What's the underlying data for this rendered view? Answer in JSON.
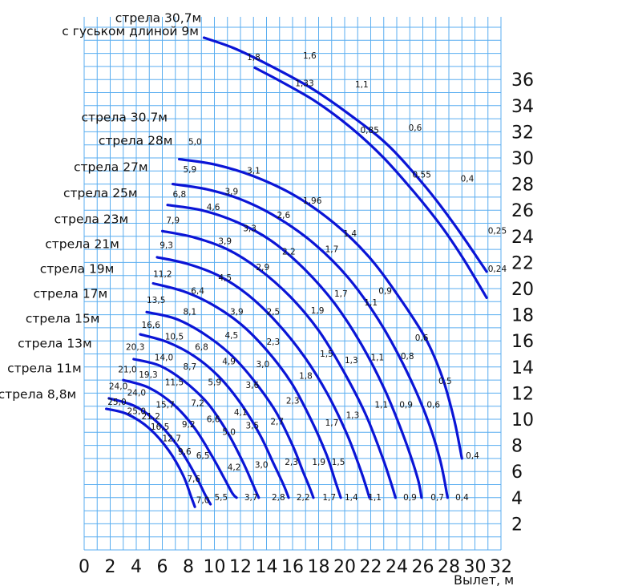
{
  "chart_data": {
    "type": "line",
    "title": "",
    "xlabel": "Вылет, м",
    "ylabel": "",
    "xlim": [
      0,
      32
    ],
    "ylim": [
      0,
      40
    ],
    "grid": true,
    "x_ticks": [
      "0",
      "2",
      "4",
      "6",
      "8",
      "10",
      "12",
      "14",
      "16",
      "18",
      "20",
      "22",
      "24",
      "26",
      "28",
      "30",
      "32"
    ],
    "y_ticks": [
      "2",
      "4",
      "6",
      "8",
      "10",
      "12",
      "14",
      "16",
      "18",
      "20",
      "22",
      "24",
      "26",
      "28",
      "30",
      "32",
      "34",
      "36"
    ],
    "boom_labels": [
      {
        "text": "стрела 30,7м",
        "lx": 9.0,
        "ly": 40.4
      },
      {
        "text": "с гуськом длиной 9м",
        "lx": 8.8,
        "ly": 39.4
      },
      {
        "text": "стрела 30.7м",
        "lx": 6.4,
        "ly": 32.8
      },
      {
        "text": "стрела 28м",
        "lx": 6.8,
        "ly": 31.0
      },
      {
        "text": "стрела 27м",
        "lx": 4.9,
        "ly": 29.0
      },
      {
        "text": "стрела 25м",
        "lx": 4.1,
        "ly": 27.0
      },
      {
        "text": "стрела 23м",
        "lx": 3.4,
        "ly": 25.0
      },
      {
        "text": "стрела 21м",
        "lx": 2.7,
        "ly": 23.1
      },
      {
        "text": "стрела 19м",
        "lx": 2.3,
        "ly": 21.2
      },
      {
        "text": "стрела 17м",
        "lx": 1.8,
        "ly": 19.3
      },
      {
        "text": "стрела 15м",
        "lx": 1.2,
        "ly": 17.4
      },
      {
        "text": "стрела 13м",
        "lx": 0.6,
        "ly": 15.5
      },
      {
        "text": "стрела 11м",
        "lx": -0.2,
        "ly": 13.6
      },
      {
        "text": "стрела 8,8м",
        "lx": -0.6,
        "ly": 11.6
      }
    ],
    "series": [
      {
        "id": "jib-upper",
        "x": [
          9.2,
          11.5,
          14.2,
          17.5,
          20.4,
          23.3,
          26.2,
          28.5,
          30.9
        ],
        "y": [
          39.2,
          38.4,
          37.1,
          35.3,
          33.3,
          31.0,
          27.8,
          24.8,
          21.3
        ]
      },
      {
        "id": "jib-lower",
        "x": [
          13.1,
          15.2,
          17.8,
          20.5,
          23.0,
          25.4,
          27.4,
          29.1,
          30.9
        ],
        "y": [
          36.9,
          35.8,
          34.3,
          32.3,
          30.0,
          27.3,
          24.8,
          22.3,
          19.3
        ]
      },
      {
        "id": "b307",
        "x": [
          7.3,
          10.0,
          13.0,
          16.2,
          19.2,
          21.8,
          24.0,
          26.2,
          27.5,
          28.4,
          29.0
        ],
        "y": [
          29.9,
          29.5,
          28.6,
          27.1,
          25.0,
          22.5,
          19.6,
          16.2,
          13.2,
          10.0,
          7.0
        ]
      },
      {
        "id": "b28",
        "x": [
          6.8,
          9.4,
          12.1,
          14.9,
          17.7,
          20.3,
          22.6,
          24.5,
          26.2,
          27.3,
          27.9
        ],
        "y": [
          28.0,
          27.6,
          26.8,
          25.4,
          23.4,
          20.8,
          17.6,
          14.2,
          10.4,
          7.0,
          4.0
        ]
      },
      {
        "id": "b27",
        "x": [
          6.4,
          9.0,
          11.7,
          14.3,
          16.8,
          19.2,
          21.3,
          23.1,
          24.6,
          25.6,
          25.9
        ],
        "y": [
          26.4,
          26.0,
          25.1,
          23.7,
          21.6,
          18.9,
          15.7,
          12.2,
          8.5,
          5.5,
          4.0
        ]
      },
      {
        "id": "b25",
        "x": [
          6.0,
          8.5,
          11.0,
          13.4,
          15.8,
          18.0,
          19.9,
          21.6,
          22.9,
          23.6,
          23.9
        ],
        "y": [
          24.4,
          23.9,
          23.0,
          21.5,
          19.4,
          16.8,
          13.7,
          10.4,
          7.1,
          5.0,
          4.0
        ]
      },
      {
        "id": "b23",
        "x": [
          5.6,
          7.9,
          10.3,
          12.6,
          14.8,
          16.9,
          18.7,
          20.2,
          21.3,
          21.9
        ],
        "y": [
          22.4,
          21.9,
          21.0,
          19.5,
          17.4,
          14.8,
          11.9,
          8.8,
          5.9,
          4.0
        ]
      },
      {
        "id": "b21",
        "x": [
          5.3,
          7.6,
          9.8,
          12.0,
          14.0,
          15.9,
          17.4,
          18.6,
          19.3,
          19.7
        ],
        "y": [
          20.4,
          19.8,
          18.8,
          17.3,
          15.3,
          12.8,
          10.0,
          7.3,
          5.2,
          4.0
        ]
      },
      {
        "id": "b19",
        "x": [
          4.8,
          7.0,
          9.1,
          11.2,
          13.0,
          14.7,
          16.0,
          16.8,
          17.3,
          17.6
        ],
        "y": [
          18.2,
          17.7,
          16.6,
          15.0,
          13.0,
          10.6,
          8.0,
          6.0,
          4.8,
          4.0
        ]
      },
      {
        "id": "b17",
        "x": [
          4.3,
          6.4,
          8.5,
          10.4,
          12.1,
          13.5,
          14.5,
          15.3,
          15.7
        ],
        "y": [
          16.5,
          15.9,
          14.8,
          13.2,
          11.1,
          8.8,
          6.7,
          5.0,
          4.0
        ]
      },
      {
        "id": "b15",
        "x": [
          3.8,
          5.8,
          7.7,
          9.5,
          11.0,
          12.2,
          13.0,
          13.4
        ],
        "y": [
          14.6,
          14.1,
          12.9,
          11.2,
          9.0,
          6.7,
          4.9,
          4.0
        ]
      },
      {
        "id": "b13",
        "x": [
          3.0,
          5.0,
          6.9,
          8.5,
          9.8,
          10.8,
          11.4,
          11.7
        ],
        "y": [
          13.0,
          12.4,
          11.1,
          9.3,
          7.2,
          5.4,
          4.3,
          4.0
        ]
      },
      {
        "id": "b11",
        "x": [
          1.9,
          3.9,
          5.7,
          7.3,
          8.5,
          9.3,
          9.7
        ],
        "y": [
          11.6,
          11.0,
          9.7,
          7.8,
          5.8,
          4.2,
          3.5
        ]
      },
      {
        "id": "b88",
        "x": [
          1.7,
          3.3,
          5.0,
          6.5,
          7.6,
          8.2,
          8.5
        ],
        "y": [
          10.8,
          10.4,
          9.3,
          7.6,
          5.7,
          4.1,
          3.3
        ]
      }
    ],
    "load_labels": [
      {
        "text": "1,6",
        "x": 16.8,
        "y": 37.6
      },
      {
        "text": "1,8",
        "x": 12.5,
        "y": 37.5
      },
      {
        "text": "1,33",
        "x": 16.2,
        "y": 35.5
      },
      {
        "text": "1,1",
        "x": 20.8,
        "y": 35.4
      },
      {
        "text": "0,6",
        "x": 24.9,
        "y": 32.1
      },
      {
        "text": "0,85",
        "x": 21.2,
        "y": 31.9
      },
      {
        "text": "0,55",
        "x": 25.2,
        "y": 28.5
      },
      {
        "text": "0,4",
        "x": 28.9,
        "y": 28.2
      },
      {
        "text": "0,25",
        "x": 31.0,
        "y": 24.2
      },
      {
        "text": "0,24",
        "x": 31.0,
        "y": 21.3
      },
      {
        "text": "5,0",
        "x": 8.0,
        "y": 31.0
      },
      {
        "text": "3,1",
        "x": 12.5,
        "y": 28.8
      },
      {
        "text": "1,96",
        "x": 16.8,
        "y": 26.5
      },
      {
        "text": "1,4",
        "x": 19.9,
        "y": 24.0
      },
      {
        "text": "0,9",
        "x": 22.6,
        "y": 19.6
      },
      {
        "text": "0,6",
        "x": 25.4,
        "y": 16.0
      },
      {
        "text": "0,5",
        "x": 27.2,
        "y": 12.7
      },
      {
        "text": "0,4",
        "x": 29.3,
        "y": 7.0
      },
      {
        "text": "5,9",
        "x": 7.6,
        "y": 28.9
      },
      {
        "text": "3,9",
        "x": 10.8,
        "y": 27.2
      },
      {
        "text": "2,6",
        "x": 14.8,
        "y": 25.4
      },
      {
        "text": "1,7",
        "x": 18.5,
        "y": 22.8
      },
      {
        "text": "1,1",
        "x": 21.5,
        "y": 18.7
      },
      {
        "text": "0,8",
        "x": 24.3,
        "y": 14.6
      },
      {
        "text": "0,6",
        "x": 26.3,
        "y": 10.9
      },
      {
        "text": "0,4",
        "x": 28.5,
        "y": 3.8
      },
      {
        "text": "6,8",
        "x": 6.8,
        "y": 27.0
      },
      {
        "text": "4,6",
        "x": 9.4,
        "y": 26.0
      },
      {
        "text": "3,3",
        "x": 12.2,
        "y": 24.4
      },
      {
        "text": "2,2",
        "x": 15.2,
        "y": 22.6
      },
      {
        "text": "1,7",
        "x": 19.2,
        "y": 19.4
      },
      {
        "text": "1,1",
        "x": 22.0,
        "y": 14.5
      },
      {
        "text": "0,9",
        "x": 24.2,
        "y": 10.9
      },
      {
        "text": "0,7",
        "x": 26.6,
        "y": 3.8
      },
      {
        "text": "7,9",
        "x": 6.3,
        "y": 25.0
      },
      {
        "text": "3,9",
        "x": 10.3,
        "y": 23.4
      },
      {
        "text": "2,9",
        "x": 13.2,
        "y": 21.4
      },
      {
        "text": "1,9",
        "x": 17.4,
        "y": 18.1
      },
      {
        "text": "1,3",
        "x": 20.0,
        "y": 14.3
      },
      {
        "text": "1,1",
        "x": 22.3,
        "y": 10.9
      },
      {
        "text": "0,9",
        "x": 24.5,
        "y": 3.8
      },
      {
        "text": "9,3",
        "x": 5.8,
        "y": 23.1
      },
      {
        "text": "4,5",
        "x": 10.3,
        "y": 20.6
      },
      {
        "text": "2,5",
        "x": 14.0,
        "y": 18.0
      },
      {
        "text": "1,5",
        "x": 18.1,
        "y": 14.8
      },
      {
        "text": "1,3",
        "x": 20.1,
        "y": 10.1
      },
      {
        "text": "1,1",
        "x": 21.8,
        "y": 3.8
      },
      {
        "text": "11,2",
        "x": 5.3,
        "y": 20.9
      },
      {
        "text": "6,4",
        "x": 8.2,
        "y": 19.6
      },
      {
        "text": "3,9",
        "x": 11.2,
        "y": 18.0
      },
      {
        "text": "2,3",
        "x": 14.0,
        "y": 15.7
      },
      {
        "text": "1,8",
        "x": 16.5,
        "y": 13.1
      },
      {
        "text": "1,7",
        "x": 18.5,
        "y": 9.5
      },
      {
        "text": "1,4",
        "x": 20.0,
        "y": 3.8
      },
      {
        "text": "13,5",
        "x": 4.8,
        "y": 18.9
      },
      {
        "text": "8,1",
        "x": 7.6,
        "y": 18.0
      },
      {
        "text": "4,5",
        "x": 10.8,
        "y": 16.2
      },
      {
        "text": "3,0",
        "x": 13.2,
        "y": 14.0
      },
      {
        "text": "2,3",
        "x": 15.5,
        "y": 11.2
      },
      {
        "text": "1,5",
        "x": 19.0,
        "y": 6.5
      },
      {
        "text": "1,7",
        "x": 18.3,
        "y": 3.8
      },
      {
        "text": "16,6",
        "x": 4.4,
        "y": 17.0
      },
      {
        "text": "10,5",
        "x": 6.2,
        "y": 16.1
      },
      {
        "text": "6,8",
        "x": 8.5,
        "y": 15.3
      },
      {
        "text": "4,9",
        "x": 10.6,
        "y": 14.2
      },
      {
        "text": "3,6",
        "x": 12.4,
        "y": 12.4
      },
      {
        "text": "2,7",
        "x": 14.3,
        "y": 9.6
      },
      {
        "text": "1,9",
        "x": 17.5,
        "y": 6.5
      },
      {
        "text": "2,2",
        "x": 16.3,
        "y": 3.8
      },
      {
        "text": "20,3",
        "x": 3.2,
        "y": 15.3
      },
      {
        "text": "14,0",
        "x": 5.4,
        "y": 14.5
      },
      {
        "text": "8,7",
        "x": 7.6,
        "y": 13.8
      },
      {
        "text": "5,9",
        "x": 9.5,
        "y": 12.6
      },
      {
        "text": "4,1",
        "x": 11.5,
        "y": 10.3
      },
      {
        "text": "3,5",
        "x": 12.4,
        "y": 9.3
      },
      {
        "text": "2,3",
        "x": 15.4,
        "y": 6.5
      },
      {
        "text": "2,8",
        "x": 14.4,
        "y": 3.8
      },
      {
        "text": "21,0",
        "x": 2.6,
        "y": 13.6
      },
      {
        "text": "19,3",
        "x": 4.2,
        "y": 13.2
      },
      {
        "text": "11,5",
        "x": 6.2,
        "y": 12.6
      },
      {
        "text": "7,2",
        "x": 8.2,
        "y": 11.0
      },
      {
        "text": "6,6",
        "x": 9.4,
        "y": 9.8
      },
      {
        "text": "5,0",
        "x": 10.6,
        "y": 8.8
      },
      {
        "text": "3,0",
        "x": 13.1,
        "y": 6.3
      },
      {
        "text": "3,7",
        "x": 12.3,
        "y": 3.8
      },
      {
        "text": "24,0",
        "x": 1.9,
        "y": 12.3
      },
      {
        "text": "24,0",
        "x": 3.3,
        "y": 11.8
      },
      {
        "text": "15,7",
        "x": 5.5,
        "y": 10.9
      },
      {
        "text": "9,2",
        "x": 7.5,
        "y": 9.4
      },
      {
        "text": "6,5",
        "x": 8.6,
        "y": 7.0
      },
      {
        "text": "4,2",
        "x": 11.0,
        "y": 6.1
      },
      {
        "text": "5,5",
        "x": 10.0,
        "y": 3.8
      },
      {
        "text": "25,0",
        "x": 1.8,
        "y": 11.1
      },
      {
        "text": "25,0",
        "x": 3.3,
        "y": 10.4
      },
      {
        "text": "21,2",
        "x": 4.4,
        "y": 10.0
      },
      {
        "text": "16,5",
        "x": 5.1,
        "y": 9.2
      },
      {
        "text": "12,7",
        "x": 6.0,
        "y": 8.3
      },
      {
        "text": "9,6",
        "x": 7.2,
        "y": 7.3
      },
      {
        "text": "7,6",
        "x": 7.9,
        "y": 5.2
      },
      {
        "text": "7,0",
        "x": 8.6,
        "y": 3.6
      }
    ]
  }
}
